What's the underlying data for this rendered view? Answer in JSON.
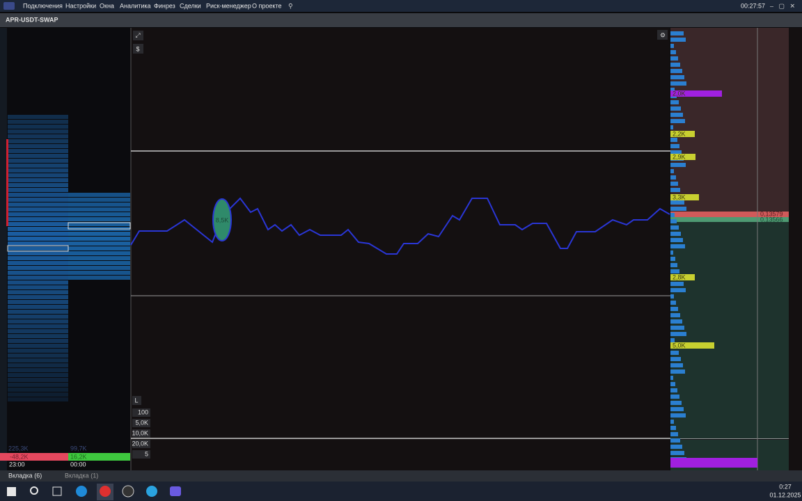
{
  "menu": {
    "items": [
      "Подключения",
      "Настройки",
      "Окна",
      "Аналитика",
      "Финрез",
      "Сделки",
      "Риск-менеджер",
      "О проекте"
    ],
    "clock": "00:27:57"
  },
  "instrument": "APR-USDT-SWAP",
  "left_panel": {
    "totals": [
      "225,3K",
      "99,7K"
    ],
    "deltas": [
      "-48,2K",
      "16,2K"
    ],
    "times": [
      "23:00",
      "00:00"
    ]
  },
  "chart": {
    "buttons": [
      "$",
      "L"
    ],
    "filters": [
      "100",
      "5,0K",
      "10,0K",
      "20,0K",
      "5"
    ],
    "bubble": "8,5K"
  },
  "order_book": {
    "volume_labels": [
      "2,0K",
      "2,2K",
      "2,9K",
      "3,3K",
      "2,8K",
      "5,0K"
    ],
    "prices": [
      "0,13579",
      "0,13566"
    ]
  },
  "tabs": [
    "Вкладка (6)",
    "Вкладка (1)"
  ],
  "taskbar": {
    "time": "0:27",
    "date": "01.12.2025"
  }
}
